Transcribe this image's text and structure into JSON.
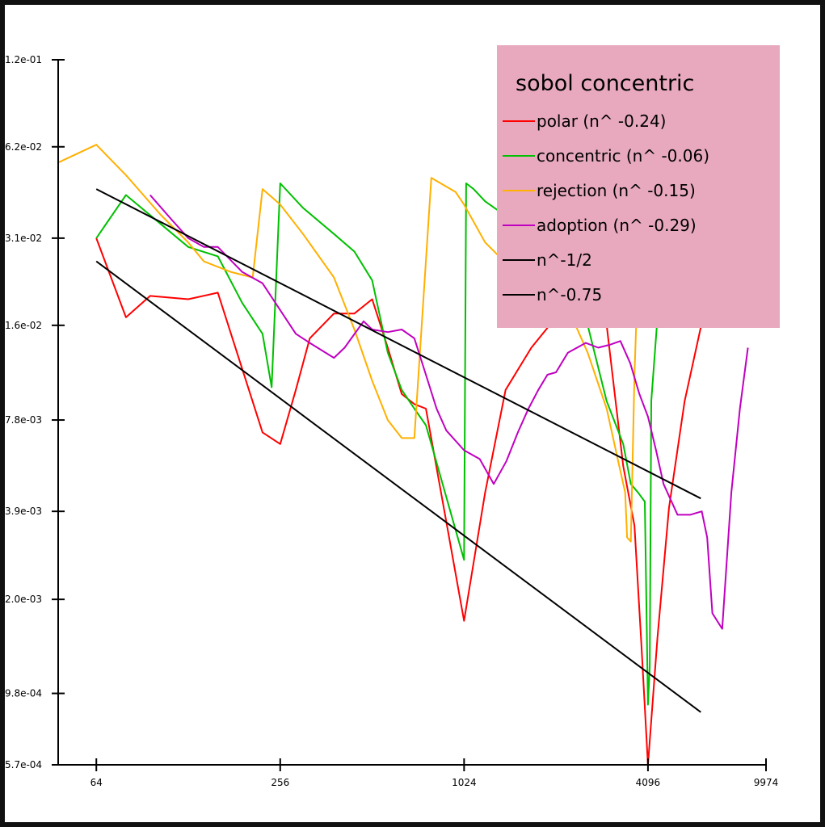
{
  "chart_data": {
    "type": "line",
    "title": "sobol concentric",
    "xscale": "log2",
    "yscale": "log",
    "xlim": [
      48,
      9974
    ],
    "ylim": [
      0.00057,
      0.12
    ],
    "x_ticks": [
      "64",
      "256",
      "1024",
      "4096",
      "9974"
    ],
    "y_ticks": [
      "1.2e-01",
      "6.2e-02",
      "3.1e-02",
      "1.6e-02",
      "7.8e-03",
      "3.9e-03",
      "2.0e-03",
      "9.8e-04",
      "5.7e-04"
    ],
    "legend_position": "top-right",
    "legend_background": "#e8a9bf",
    "series": [
      {
        "name": "polar (n^ -0.24)",
        "color": "#ff0000",
        "x": [
          64,
          80,
          96,
          128,
          160,
          224,
          256,
          288,
          320,
          384,
          448,
          512,
          576,
          640,
          704,
          768,
          900,
          1024,
          1200,
          1400,
          1700,
          2000,
          2400,
          3000,
          3400,
          3700,
          3900,
          4096,
          4400,
          4800,
          5400,
          6200
        ],
        "y": [
          0.031,
          0.017,
          0.02,
          0.0195,
          0.0205,
          0.0071,
          0.0065,
          0.0098,
          0.0145,
          0.0175,
          0.0175,
          0.0195,
          0.0135,
          0.0095,
          0.0088,
          0.0085,
          0.0035,
          0.0017,
          0.0045,
          0.0098,
          0.0135,
          0.0165,
          0.0175,
          0.016,
          0.0055,
          0.0035,
          0.0014,
          0.00057,
          0.0015,
          0.004,
          0.009,
          0.017
        ]
      },
      {
        "name": "concentric (n^ -0.06)",
        "color": "#00c000",
        "x": [
          64,
          80,
          128,
          160,
          192,
          224,
          240,
          256,
          304,
          384,
          448,
          512,
          576,
          640,
          704,
          768,
          800,
          1024,
          1040,
          1100,
          1200,
          1500,
          1800,
          2200,
          2600,
          3000,
          3400,
          3600,
          3800,
          4000,
          4096,
          4150,
          4200,
          4400
        ],
        "y": [
          0.031,
          0.043,
          0.029,
          0.027,
          0.019,
          0.015,
          0.01,
          0.047,
          0.039,
          0.032,
          0.028,
          0.0225,
          0.013,
          0.0098,
          0.0085,
          0.0075,
          0.0065,
          0.0027,
          0.047,
          0.045,
          0.041,
          0.035,
          0.029,
          0.022,
          0.016,
          0.009,
          0.0065,
          0.0048,
          0.0045,
          0.0042,
          0.0009,
          0.0012,
          0.009,
          0.017
        ]
      },
      {
        "name": "rejection (n^ -0.15)",
        "color": "#ffb000",
        "x": [
          48,
          64,
          80,
          104,
          128,
          144,
          176,
          208,
          224,
          256,
          304,
          384,
          448,
          512,
          576,
          640,
          704,
          800,
          960,
          1024,
          1200,
          1500,
          1800,
          2200,
          2600,
          3000,
          3300,
          3450,
          3500,
          3600,
          3700,
          3800
        ],
        "y": [
          0.055,
          0.063,
          0.05,
          0.037,
          0.03,
          0.026,
          0.024,
          0.023,
          0.045,
          0.04,
          0.032,
          0.023,
          0.0155,
          0.0105,
          0.0078,
          0.0068,
          0.0068,
          0.049,
          0.044,
          0.04,
          0.03,
          0.024,
          0.022,
          0.019,
          0.013,
          0.0085,
          0.0055,
          0.0045,
          0.0032,
          0.0031,
          0.011,
          0.024
        ]
      },
      {
        "name": "adoption (n^ -0.29)",
        "color": "#c000c0",
        "x": [
          96,
          112,
          128,
          144,
          160,
          192,
          224,
          288,
          320,
          384,
          416,
          480,
          512,
          576,
          640,
          704,
          768,
          832,
          896,
          1024,
          1152,
          1280,
          1408,
          1536,
          1664,
          1792,
          1920,
          2048,
          2240,
          2560,
          2816,
          3072,
          3328,
          3584,
          3840,
          4096,
          4352,
          4608,
          5120,
          5632,
          6144,
          6400,
          6656,
          7168,
          7680,
          8192,
          8704
        ],
        "y": [
          0.043,
          0.036,
          0.031,
          0.029,
          0.029,
          0.024,
          0.022,
          0.015,
          0.014,
          0.0125,
          0.0135,
          0.0165,
          0.0155,
          0.0152,
          0.0155,
          0.0145,
          0.011,
          0.0085,
          0.0072,
          0.0062,
          0.0058,
          0.0048,
          0.0057,
          0.0071,
          0.0085,
          0.0098,
          0.011,
          0.0112,
          0.013,
          0.014,
          0.0135,
          0.0138,
          0.0142,
          0.012,
          0.0095,
          0.008,
          0.0062,
          0.0048,
          0.0038,
          0.0038,
          0.0039,
          0.0032,
          0.0018,
          0.0016,
          0.0045,
          0.0085,
          0.0135
        ]
      },
      {
        "name": "n^-1/2",
        "color": "#000000",
        "x": [
          64,
          6100
        ],
        "y": [
          0.045,
          0.0043
        ]
      },
      {
        "name": "n^-0.75",
        "color": "#000000",
        "x": [
          64,
          6100
        ],
        "y": [
          0.026,
          0.00085
        ]
      }
    ]
  }
}
